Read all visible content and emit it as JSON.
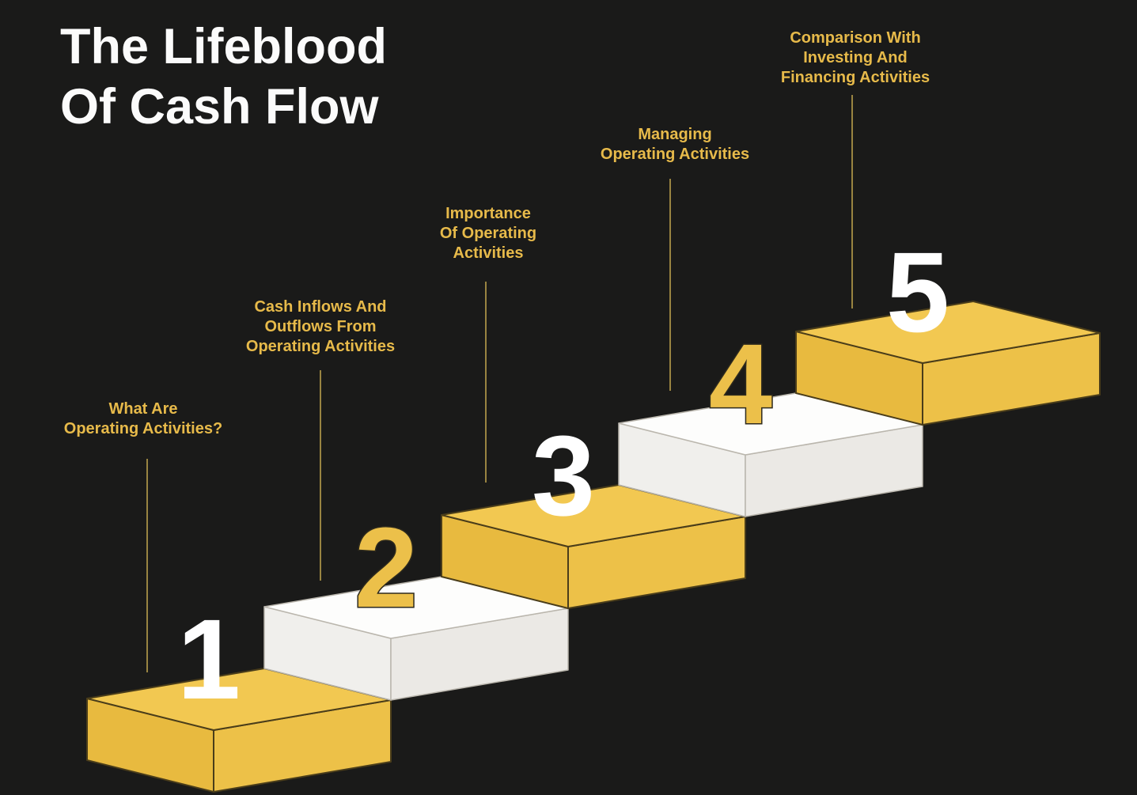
{
  "title": "The Lifeblood\nOf Cash Flow",
  "colors": {
    "background": "#1A1A19",
    "title_text": "#FBFBFB",
    "label_text": "#E7BA4A",
    "connector_line": "#998441",
    "yellow_step": {
      "top": "#F2C851",
      "left": "#E8BA3F",
      "right": "#EDC148",
      "outline": "#4A3D1A"
    },
    "white_step": {
      "top": "#FDFDFC",
      "left": "#F0EFEC",
      "right": "#EBE9E5",
      "outline": "#BAB6AD"
    },
    "number_white": "#FFFFFF",
    "number_yellow": "#ECC04A",
    "number_outline": "#2E2A1D"
  },
  "steps": [
    {
      "number": "1",
      "label": "What Are\nOperating Activities?",
      "step_color": "yellow",
      "number_color": "white"
    },
    {
      "number": "2",
      "label": "Cash Inflows And\nOutflows From\nOperating Activities",
      "step_color": "white",
      "number_color": "yellow"
    },
    {
      "number": "3",
      "label": "Importance\nOf Operating\nActivities",
      "step_color": "yellow",
      "number_color": "white"
    },
    {
      "number": "4",
      "label": "Managing\nOperating Activities",
      "step_color": "white",
      "number_color": "yellow"
    },
    {
      "number": "5",
      "label": "Comparison With\nInvesting And\nFinancing Activities",
      "step_color": "yellow",
      "number_color": "white"
    }
  ]
}
